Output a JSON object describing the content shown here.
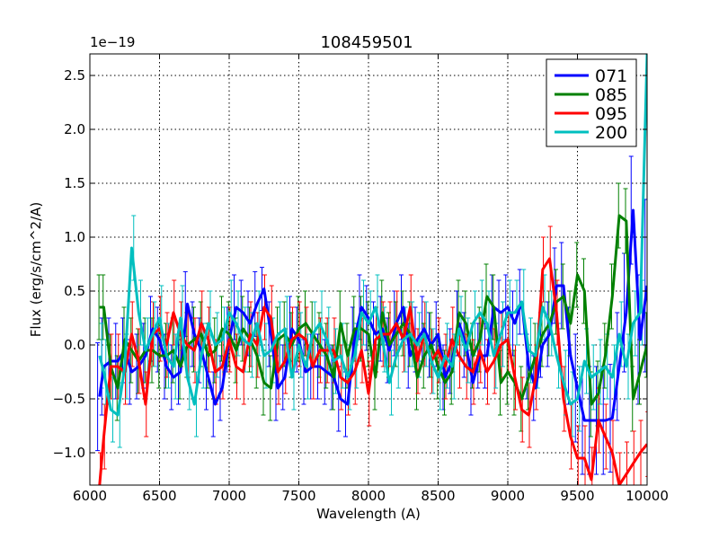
{
  "chart_data": {
    "type": "line",
    "title": "108459501",
    "xlabel": "Wavelength (A)",
    "ylabel": "Flux (erg/s/cm^2/A)",
    "y_scale_label": "1e−19",
    "xlim": [
      6000,
      10000
    ],
    "ylim": [
      -1.3,
      2.7
    ],
    "xticks": [
      6000,
      6500,
      7000,
      7500,
      8000,
      8500,
      9000,
      9500,
      10000
    ],
    "xtick_labels": [
      "6000",
      "6500",
      "7000",
      "7500",
      "8000",
      "8500",
      "9000",
      "9500",
      "10000"
    ],
    "yticks": [
      -1.0,
      -0.5,
      0.0,
      0.5,
      1.0,
      1.5,
      2.0,
      2.5
    ],
    "ytick_labels": [
      "−1.0",
      "−0.5",
      "0.0",
      "0.5",
      "1.0",
      "1.5",
      "2.0",
      "2.5"
    ],
    "grid": true,
    "legend_position": "top-right",
    "x": [
      6070,
      6100,
      6150,
      6200,
      6250,
      6300,
      6350,
      6400,
      6450,
      6500,
      6550,
      6600,
      6650,
      6700,
      6750,
      6800,
      6850,
      6900,
      6950,
      7000,
      7050,
      7100,
      7150,
      7200,
      7250,
      7300,
      7350,
      7400,
      7450,
      7500,
      7550,
      7600,
      7650,
      7700,
      7750,
      7800,
      7850,
      7900,
      7950,
      8000,
      8050,
      8100,
      8150,
      8200,
      8250,
      8300,
      8350,
      8400,
      8450,
      8500,
      8550,
      8600,
      8650,
      8700,
      8750,
      8800,
      8850,
      8900,
      8950,
      9000,
      9050,
      9100,
      9150,
      9200,
      9250,
      9300,
      9350,
      9400,
      9450,
      9500,
      9550,
      9600,
      9650,
      9700,
      9750,
      9800,
      9850,
      9900,
      9950,
      10000
    ],
    "series": [
      {
        "name": "071",
        "color": "#0000ff",
        "values": [
          -0.48,
          -0.2,
          -0.15,
          -0.15,
          -0.05,
          -0.25,
          -0.2,
          -0.1,
          0.15,
          0.05,
          -0.2,
          -0.3,
          -0.25,
          0.38,
          0.1,
          -0.05,
          -0.3,
          -0.55,
          -0.4,
          0.05,
          0.35,
          0.3,
          0.2,
          0.38,
          0.52,
          0.1,
          -0.4,
          -0.3,
          0.15,
          0.05,
          -0.25,
          -0.2,
          -0.2,
          -0.25,
          -0.3,
          -0.5,
          -0.55,
          0.05,
          0.35,
          0.25,
          0.1,
          0.15,
          -0.05,
          0.2,
          0.35,
          -0.1,
          0.05,
          0.15,
          0.0,
          0.1,
          -0.3,
          -0.15,
          0.2,
          0.0,
          -0.35,
          -0.1,
          -0.1,
          0.35,
          0.3,
          0.35,
          0.2,
          0.4,
          -0.2,
          -0.4,
          0.0,
          0.1,
          0.55,
          0.55,
          -0.1,
          -0.4,
          -0.7,
          -0.7,
          -0.7,
          -0.7,
          -0.68,
          -0.2,
          0.3,
          1.25,
          0.05,
          0.55
        ]
      },
      {
        "name": "085",
        "color": "#008000",
        "values": [
          0.35,
          0.35,
          -0.2,
          -0.4,
          0.05,
          -0.05,
          -0.15,
          -0.05,
          -0.05,
          -0.1,
          -0.1,
          -0.05,
          -0.2,
          0.0,
          0.05,
          0.1,
          -0.1,
          -0.05,
          0.15,
          0.1,
          -0.05,
          0.15,
          0.05,
          -0.1,
          -0.35,
          -0.4,
          0.05,
          0.1,
          0.0,
          0.15,
          0.2,
          0.1,
          0.0,
          -0.1,
          -0.3,
          0.2,
          -0.1,
          0.15,
          0.15,
          0.1,
          -0.3,
          0.3,
          0.0,
          0.1,
          0.2,
          0.1,
          -0.3,
          -0.1,
          0.0,
          -0.2,
          -0.35,
          -0.25,
          0.3,
          0.2,
          -0.1,
          0.05,
          0.45,
          0.35,
          -0.35,
          -0.25,
          -0.35,
          -0.5,
          -0.3,
          -0.1,
          0.1,
          0.2,
          0.4,
          0.45,
          0.2,
          0.65,
          0.5,
          -0.55,
          -0.45,
          -0.1,
          0.45,
          1.2,
          1.15,
          -0.5,
          -0.25,
          0.0
        ]
      },
      {
        "name": "095",
        "color": "#ff0000",
        "values": [
          -1.3,
          -0.85,
          -0.2,
          -0.2,
          -0.25,
          0.1,
          -0.15,
          -0.55,
          0.1,
          0.15,
          0.0,
          0.3,
          0.1,
          0.0,
          -0.05,
          0.2,
          0.05,
          -0.25,
          -0.2,
          0.05,
          -0.2,
          -0.25,
          0.1,
          0.0,
          0.35,
          0.25,
          -0.25,
          -0.15,
          0.05,
          0.1,
          0.05,
          -0.2,
          -0.05,
          -0.05,
          -0.05,
          -0.3,
          -0.35,
          -0.25,
          -0.05,
          -0.45,
          0.05,
          0.1,
          0.1,
          0.2,
          0.05,
          0.35,
          -0.15,
          0.1,
          -0.15,
          -0.05,
          -0.2,
          0.05,
          -0.1,
          -0.2,
          -0.25,
          -0.05,
          -0.25,
          -0.15,
          0.0,
          0.05,
          -0.3,
          -0.6,
          -0.65,
          -0.3,
          0.7,
          0.8,
          0.3,
          -0.5,
          -0.85,
          -1.05,
          -1.05,
          -1.25,
          -0.7,
          -0.85,
          -1.0,
          -1.3,
          -1.2,
          -1.1,
          -1.0,
          -0.92
        ]
      },
      {
        "name": "200",
        "color": "#00bfbf",
        "values": [
          -0.1,
          -0.25,
          -0.6,
          -0.65,
          -0.2,
          0.9,
          0.3,
          -0.05,
          0.1,
          0.25,
          -0.1,
          -0.2,
          0.25,
          -0.3,
          -0.55,
          -0.1,
          0.2,
          0.0,
          0.05,
          0.3,
          0.2,
          0.05,
          0.0,
          0.2,
          -0.1,
          -0.05,
          0.1,
          0.15,
          -0.3,
          0.0,
          -0.2,
          0.1,
          0.2,
          0.05,
          -0.15,
          -0.1,
          -0.3,
          -0.1,
          0.3,
          0.2,
          0.35,
          0.05,
          -0.35,
          -0.1,
          0.05,
          0.1,
          0.0,
          0.1,
          -0.15,
          -0.3,
          -0.1,
          -0.2,
          0.15,
          -0.05,
          0.2,
          0.3,
          0.2,
          -0.1,
          0.1,
          0.3,
          0.3,
          0.4,
          -0.05,
          -0.1,
          0.35,
          0.2,
          -0.1,
          -0.35,
          -0.55,
          -0.5,
          -0.15,
          -0.3,
          -0.25,
          -0.2,
          -0.3,
          0.1,
          -0.2,
          0.2,
          0.3,
          2.7
        ]
      }
    ],
    "error_half_widths": {
      "071": [
        0.5,
        0.45,
        0.4,
        0.35,
        0.3,
        0.3,
        0.3,
        0.3,
        0.3,
        0.3,
        0.3,
        0.3,
        0.3,
        0.3,
        0.3,
        0.3,
        0.3,
        0.3,
        0.3,
        0.3,
        0.3,
        0.3,
        0.3,
        0.3,
        0.2,
        0.3,
        0.3,
        0.3,
        0.3,
        0.3,
        0.3,
        0.3,
        0.3,
        0.3,
        0.3,
        0.3,
        0.3,
        0.3,
        0.3,
        0.3,
        0.3,
        0.3,
        0.3,
        0.3,
        0.3,
        0.3,
        0.3,
        0.3,
        0.3,
        0.3,
        0.3,
        0.3,
        0.3,
        0.3,
        0.3,
        0.3,
        0.3,
        0.3,
        0.3,
        0.3,
        0.3,
        0.3,
        0.3,
        0.3,
        0.3,
        0.3,
        0.35,
        0.4,
        0.45,
        0.5,
        0.5,
        0.5,
        0.5,
        0.5,
        0.5,
        0.5,
        0.55,
        0.5,
        0.6,
        0.8
      ]
    }
  },
  "legend": {
    "entries": [
      "071",
      "085",
      "095",
      "200"
    ]
  }
}
